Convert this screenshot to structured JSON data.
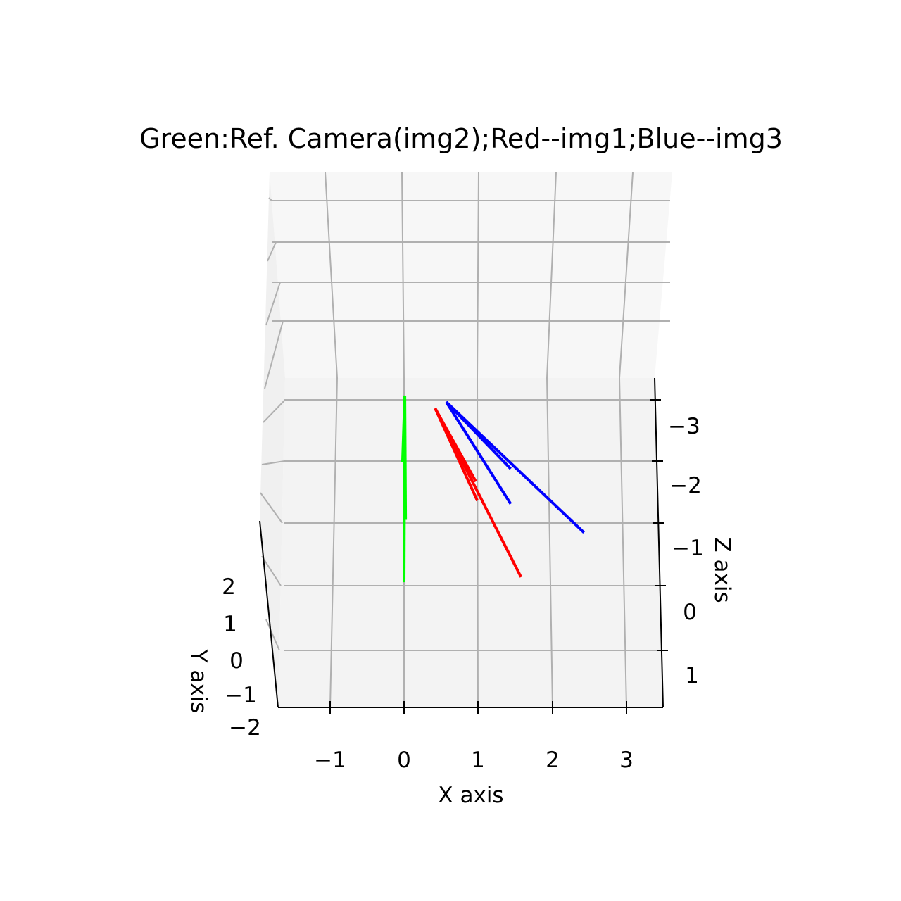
{
  "chart_data": {
    "type": "line",
    "title": "Green:Ref. Camera(img2);Red--img1;Blue--img3",
    "xlabel": "X axis",
    "ylabel": "Y axis",
    "zlabel": "Z axis",
    "x_ticks": [
      "−1",
      "0",
      "1",
      "2",
      "3"
    ],
    "y_ticks": [
      "2",
      "1",
      "0",
      "−1",
      "−2"
    ],
    "z_ticks": [
      "−3",
      "−2",
      "−1",
      "0",
      "1"
    ],
    "xlim": [
      -1.7,
      3.5
    ],
    "zlim": [
      -3.7,
      1.5
    ],
    "grid": true,
    "series": [
      {
        "color": "#00ff00",
        "segments": [
          {
            "x": [
              0.01,
              0.0
            ],
            "z": [
              -3.05,
              -0.12
            ]
          },
          {
            "x": [
              0.01,
              0.02
            ],
            "z": [
              -3.05,
              -1.1
            ]
          },
          {
            "x": [
              0.01,
              -0.02
            ],
            "z": [
              -3.05,
              -2.0
            ]
          }
        ]
      },
      {
        "color": "#ff0000",
        "segments": [
          {
            "x": [
              0.42,
              1.58
            ],
            "z": [
              -2.85,
              -0.2
            ]
          },
          {
            "x": [
              0.42,
              0.97
            ],
            "z": [
              -2.85,
              -1.7
            ]
          },
          {
            "x": [
              0.42,
              0.99
            ],
            "z": [
              -2.85,
              -1.4
            ]
          }
        ]
      },
      {
        "color": "#0000ff",
        "segments": [
          {
            "x": [
              0.57,
              2.43
            ],
            "z": [
              -2.95,
              -0.9
            ]
          },
          {
            "x": [
              0.57,
              1.44
            ],
            "z": [
              -2.95,
              -1.35
            ]
          },
          {
            "x": [
              0.57,
              1.44
            ],
            "z": [
              -2.95,
              -1.9
            ]
          }
        ]
      }
    ]
  }
}
